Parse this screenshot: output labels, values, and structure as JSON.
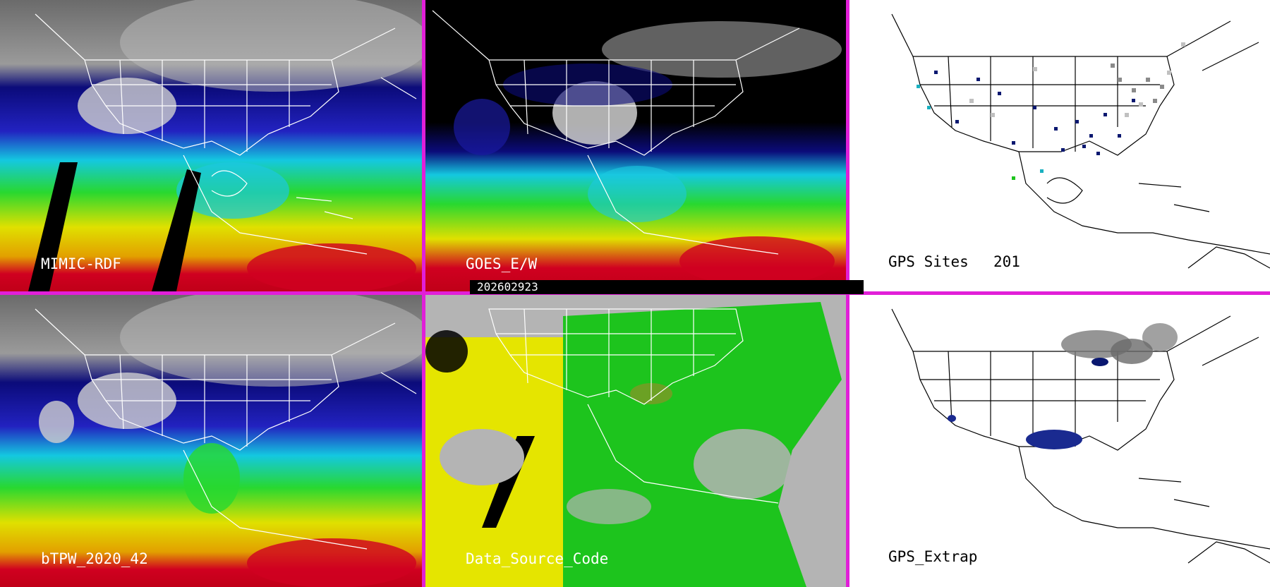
{
  "panels": {
    "mimic": {
      "label": "MIMIC-RDF"
    },
    "goes": {
      "label": "GOES_E/W"
    },
    "gps": {
      "label": "GPS Sites",
      "count": "201"
    },
    "btpw": {
      "label": "bTPW_2020_42"
    },
    "dsc": {
      "label": "Data_Source_Code"
    },
    "gpsx": {
      "label": "GPS_Extrap"
    }
  },
  "timestamp": "202602923",
  "colors": {
    "separator": "#e11fd8",
    "tpw_dry": "#0b0b7a",
    "tpw_low": "#0aa0d8",
    "tpw_mid": "#29d829",
    "tpw_high": "#e0e000",
    "tpw_max": "#d00020",
    "goes_source": "#e5e500",
    "gps_source": "#1dc41d",
    "background_source": "#b4b4b4"
  }
}
